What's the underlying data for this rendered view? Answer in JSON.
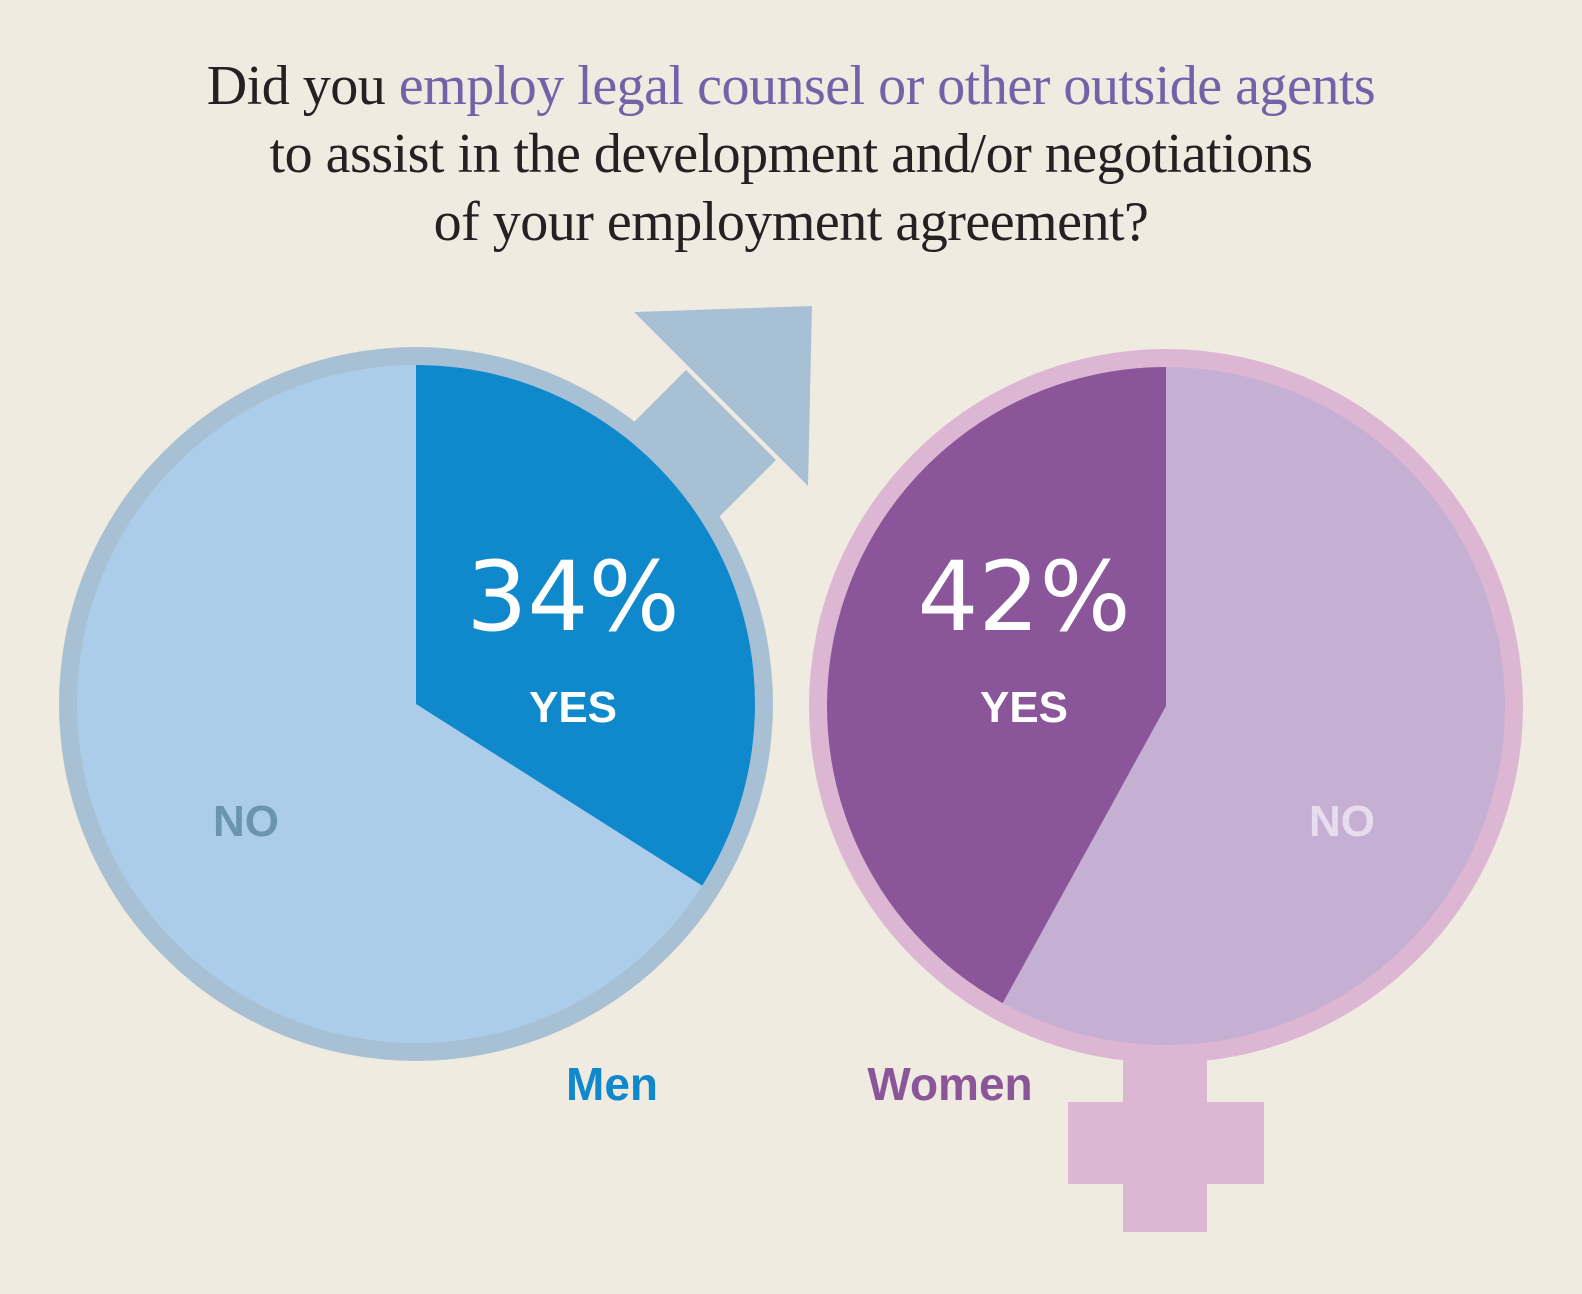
{
  "title": {
    "before": "Did you ",
    "highlight": "employ legal counsel or other outside agents",
    "line2": "to assist in the development and/or negotiations",
    "line3": "of your employment agreement?"
  },
  "colors": {
    "background": "#efebe1",
    "title_text": "#252021",
    "title_highlight": "#7561a8",
    "men_ring": "#a8c0d4",
    "men_yes": "#1088cc",
    "men_no": "#abcdea",
    "men_no_label": "#6b94ae",
    "men_name": "#1088cc",
    "women_ring": "#dcb6d3",
    "women_yes": "#8b5599",
    "women_no": "#c5b0d4",
    "women_no_label": "#e8dcef",
    "women_name": "#8b5599",
    "white": "#ffffff"
  },
  "icons": {
    "men_symbol": "male-symbol-arrow-icon",
    "women_symbol": "female-symbol-cross-icon"
  },
  "chart_data": [
    {
      "type": "pie",
      "group": "Men",
      "categories": [
        "YES",
        "NO"
      ],
      "values": [
        34,
        66
      ],
      "value_label": "34%",
      "yes_label": "YES",
      "no_label": "NO"
    },
    {
      "type": "pie",
      "group": "Women",
      "categories": [
        "YES",
        "NO"
      ],
      "values": [
        42,
        58
      ],
      "value_label": "42%",
      "yes_label": "YES",
      "no_label": "NO"
    }
  ]
}
